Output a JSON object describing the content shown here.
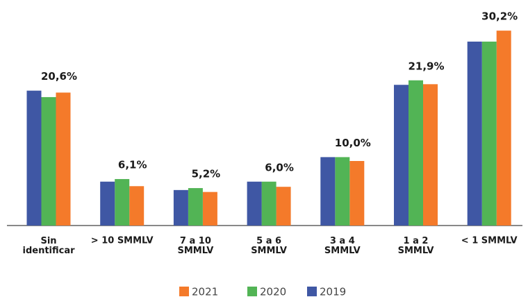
{
  "chart_data": {
    "type": "bar",
    "categories": [
      "Sin\nidentificar",
      "> 10 SMMLV",
      "7 a 10\nSMMLV",
      "5 a 6\nSMMLV",
      "3 a 4\nSMMLV",
      "1 a 2\nSMMLV",
      "< 1 SMMLV"
    ],
    "series": [
      {
        "name": "2021",
        "color": "#f47a2a",
        "values": [
          20.6,
          6.1,
          5.2,
          6.0,
          10.0,
          21.9,
          30.2
        ],
        "value_labels": [
          "20,6%",
          "6,1%",
          "5,2%",
          "6,0%",
          "10,0%",
          "21,9%",
          "30,2%"
        ]
      },
      {
        "name": "2020",
        "color": "#52b455",
        "values": [
          19.9,
          7.2,
          5.8,
          6.8,
          10.6,
          22.5,
          28.5
        ]
      },
      {
        "name": "2019",
        "color": "#3f57a4",
        "values": [
          20.9,
          6.8,
          5.5,
          6.8,
          10.6,
          21.8,
          28.5
        ]
      }
    ]
  }
}
